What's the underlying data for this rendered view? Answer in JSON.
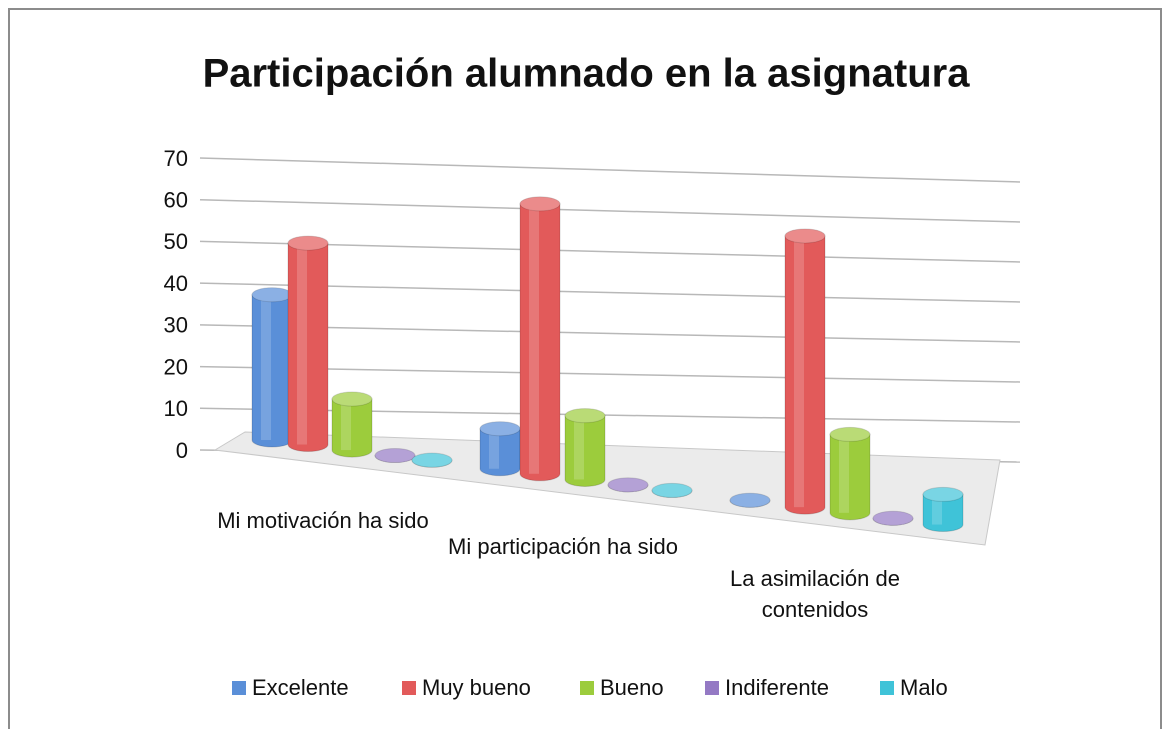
{
  "chart_data": {
    "type": "bar3d-cylinder",
    "title": "Participación alumnado en la asignatura",
    "categories": [
      "Mi motivación ha sido",
      "Mi participación ha sido",
      "La asimilación de contenidos"
    ],
    "series": [
      {
        "name": "Excelente",
        "color": "#5a8fd8",
        "values": [
          35,
          9,
          0
        ]
      },
      {
        "name": "Muy bueno",
        "color": "#e25a5a",
        "values": [
          48,
          60,
          56
        ]
      },
      {
        "name": "Bueno",
        "color": "#9ccc3c",
        "values": [
          12,
          14,
          16
        ]
      },
      {
        "name": "Indiferente",
        "color": "#9479c4",
        "values": [
          0,
          0,
          0
        ]
      },
      {
        "name": "Malo",
        "color": "#3fc3d8",
        "values": [
          0,
          0,
          6
        ]
      }
    ],
    "ylim": [
      0,
      70
    ],
    "yticks": [
      0,
      10,
      20,
      30,
      40,
      50,
      60,
      70
    ],
    "grid": true,
    "legend": "bottom"
  }
}
